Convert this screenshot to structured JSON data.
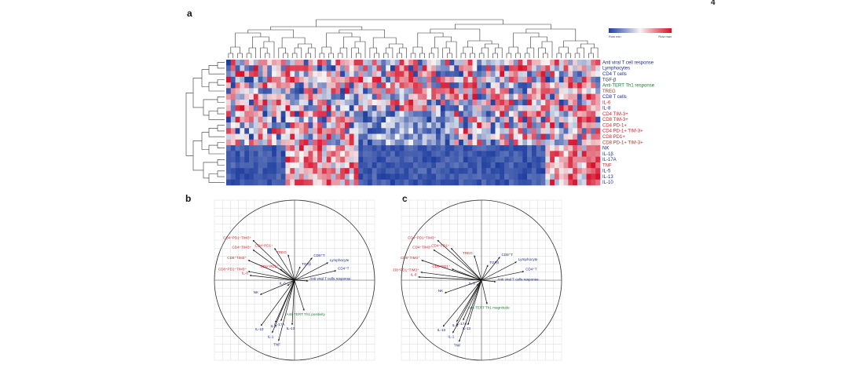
{
  "page_number": "4",
  "panels": {
    "a": "a",
    "b": "b",
    "c": "c"
  },
  "colors": {
    "row_min": "#1f3fa0",
    "row_mid": "#f4f4f4",
    "row_max": "#d8102a",
    "label_blue": "#1a2a8c",
    "label_red": "#d21f26",
    "label_green": "#1c7a2e"
  },
  "chart_data": [
    {
      "type": "heatmap",
      "legend": {
        "min_label": "Row min",
        "max_label": "Row max",
        "placement": "top-right"
      },
      "n_columns": 82,
      "rows": [
        {
          "label": "Anti viral T cell response",
          "color": "blue"
        },
        {
          "label": "Lymphocytes",
          "color": "blue"
        },
        {
          "label": "CD4 T cells",
          "color": "blue"
        },
        {
          "label": "TGF-β",
          "color": "blue"
        },
        {
          "label": "Anti-TERT Th1 response",
          "color": "green"
        },
        {
          "label": "TREG",
          "color": "red"
        },
        {
          "label": "CD8 T cells",
          "color": "blue"
        },
        {
          "label": "IL-6",
          "color": "red"
        },
        {
          "label": "IL-8",
          "color": "blue"
        },
        {
          "label": "CD4 TIM-3+",
          "color": "red"
        },
        {
          "label": "CD8 TIM-3+",
          "color": "red"
        },
        {
          "label": "CD4 PD-1+",
          "color": "red"
        },
        {
          "label": "CD4 PD-1+ TIM-3+",
          "color": "red"
        },
        {
          "label": "CD8 PD1+",
          "color": "red"
        },
        {
          "label": "CD8 PD-1+ TIM-3+",
          "color": "red"
        },
        {
          "label": "NK",
          "color": "blue"
        },
        {
          "label": "IL-1β",
          "color": "blue"
        },
        {
          "label": "IL-17A",
          "color": "blue"
        },
        {
          "label": "TNF",
          "color": "red"
        },
        {
          "label": "IL-5",
          "color": "blue"
        },
        {
          "label": "IL-13",
          "color": "blue"
        },
        {
          "label": "IL-10",
          "color": "blue"
        }
      ]
    },
    {
      "type": "scatter",
      "subtype": "pca-correlation-circle",
      "xlim": [
        -1,
        1
      ],
      "ylim": [
        -1,
        1
      ],
      "grid": true,
      "vectors": [
        {
          "label": "CD4⁺PD1⁺TIM3⁺",
          "x": -0.52,
          "y": 0.5,
          "color": "red"
        },
        {
          "label": "CD4⁺TIM3⁺",
          "x": -0.52,
          "y": 0.38,
          "color": "red"
        },
        {
          "label": "CD4⁺PD1⁺",
          "x": -0.25,
          "y": 0.4,
          "color": "red"
        },
        {
          "label": "TREG",
          "x": -0.08,
          "y": 0.32,
          "color": "red"
        },
        {
          "label": "CD8⁺TIM3⁺",
          "x": -0.58,
          "y": 0.25,
          "color": "red"
        },
        {
          "label": "CD8⁺PD1⁺",
          "x": -0.18,
          "y": 0.14,
          "color": "red"
        },
        {
          "label": "CD8⁺PD1⁺TIM3⁺",
          "x": -0.58,
          "y": 0.11,
          "color": "red"
        },
        {
          "label": "IL-8",
          "x": -0.56,
          "y": 0.06,
          "color": "red"
        },
        {
          "label": "CD8⁺T",
          "x": 0.22,
          "y": 0.28,
          "color": "blue"
        },
        {
          "label": "TGFβ",
          "x": 0.07,
          "y": 0.17,
          "color": "blue"
        },
        {
          "label": "Lymphocyte",
          "x": 0.42,
          "y": 0.22,
          "color": "blue"
        },
        {
          "label": "CD4⁺T",
          "x": 0.52,
          "y": 0.12,
          "color": "blue"
        },
        {
          "label": "Anti viral T cells response",
          "x": 0.17,
          "y": -0.01,
          "color": "blue"
        },
        {
          "label": "IL-6",
          "x": -0.09,
          "y": -0.07,
          "color": "blue"
        },
        {
          "label": "NK",
          "x": -0.43,
          "y": -0.18,
          "color": "blue"
        },
        {
          "label": "IL-10",
          "x": -0.42,
          "y": -0.57,
          "color": "blue"
        },
        {
          "label": "IL-5",
          "x": -0.24,
          "y": -0.53,
          "color": "blue"
        },
        {
          "label": "IL-17A",
          "x": -0.17,
          "y": -0.51,
          "color": "blue"
        },
        {
          "label": "IL-1",
          "x": -0.28,
          "y": -0.66,
          "color": "blue"
        },
        {
          "label": "IL-13",
          "x": -0.03,
          "y": -0.56,
          "color": "blue"
        },
        {
          "label": "TNF",
          "x": -0.2,
          "y": -0.76,
          "color": "blue"
        },
        {
          "label": "Anti-TERT Th1 positivity",
          "x": 0.12,
          "y": -0.38,
          "color": "green"
        }
      ]
    },
    {
      "type": "scatter",
      "subtype": "pca-correlation-circle",
      "xlim": [
        -1,
        1
      ],
      "ylim": [
        -1,
        1
      ],
      "grid": true,
      "vectors": [
        {
          "label": "CD4⁺PD1⁺TIM3⁺",
          "x": -0.55,
          "y": 0.5,
          "color": "red"
        },
        {
          "label": "CD4⁺PD1⁺",
          "x": -0.38,
          "y": 0.4,
          "color": "red"
        },
        {
          "label": "CD4⁺TIM3⁺",
          "x": -0.6,
          "y": 0.38,
          "color": "red"
        },
        {
          "label": "TREG",
          "x": -0.09,
          "y": 0.31,
          "color": "red"
        },
        {
          "label": "CD8⁺TIM3⁺",
          "x": -0.75,
          "y": 0.25,
          "color": "red"
        },
        {
          "label": "CD8⁺PD1⁺",
          "x": -0.37,
          "y": 0.14,
          "color": "red"
        },
        {
          "label": "CD8⁺PD1⁺TIM3⁺",
          "x": -0.76,
          "y": 0.1,
          "color": "red"
        },
        {
          "label": "IL-8",
          "x": -0.79,
          "y": 0.04,
          "color": "red"
        },
        {
          "label": "CD8⁺T",
          "x": 0.23,
          "y": 0.29,
          "color": "blue"
        },
        {
          "label": "TGFβ",
          "x": 0.08,
          "y": 0.19,
          "color": "blue"
        },
        {
          "label": "Lymphocyte",
          "x": 0.44,
          "y": 0.23,
          "color": "blue"
        },
        {
          "label": "CD4⁺T",
          "x": 0.53,
          "y": 0.11,
          "color": "blue"
        },
        {
          "label": "Anti viral T cells response",
          "x": 0.18,
          "y": -0.02,
          "color": "blue"
        },
        {
          "label": "IL-6",
          "x": -0.06,
          "y": -0.07,
          "color": "blue"
        },
        {
          "label": "NK",
          "x": -0.46,
          "y": -0.16,
          "color": "blue"
        },
        {
          "label": "IL-10",
          "x": -0.48,
          "y": -0.58,
          "color": "blue"
        },
        {
          "label": "IL-5",
          "x": -0.31,
          "y": -0.52,
          "color": "blue"
        },
        {
          "label": "IL-17A",
          "x": -0.23,
          "y": -0.5,
          "color": "blue"
        },
        {
          "label": "IL-1",
          "x": -0.36,
          "y": -0.66,
          "color": "blue"
        },
        {
          "label": "IL-13",
          "x": -0.17,
          "y": -0.56,
          "color": "blue"
        },
        {
          "label": "TNF",
          "x": -0.28,
          "y": -0.77,
          "color": "blue"
        },
        {
          "label": "Anti-TERT Th1 magnitude",
          "x": 0.07,
          "y": -0.3,
          "color": "green"
        }
      ]
    }
  ]
}
